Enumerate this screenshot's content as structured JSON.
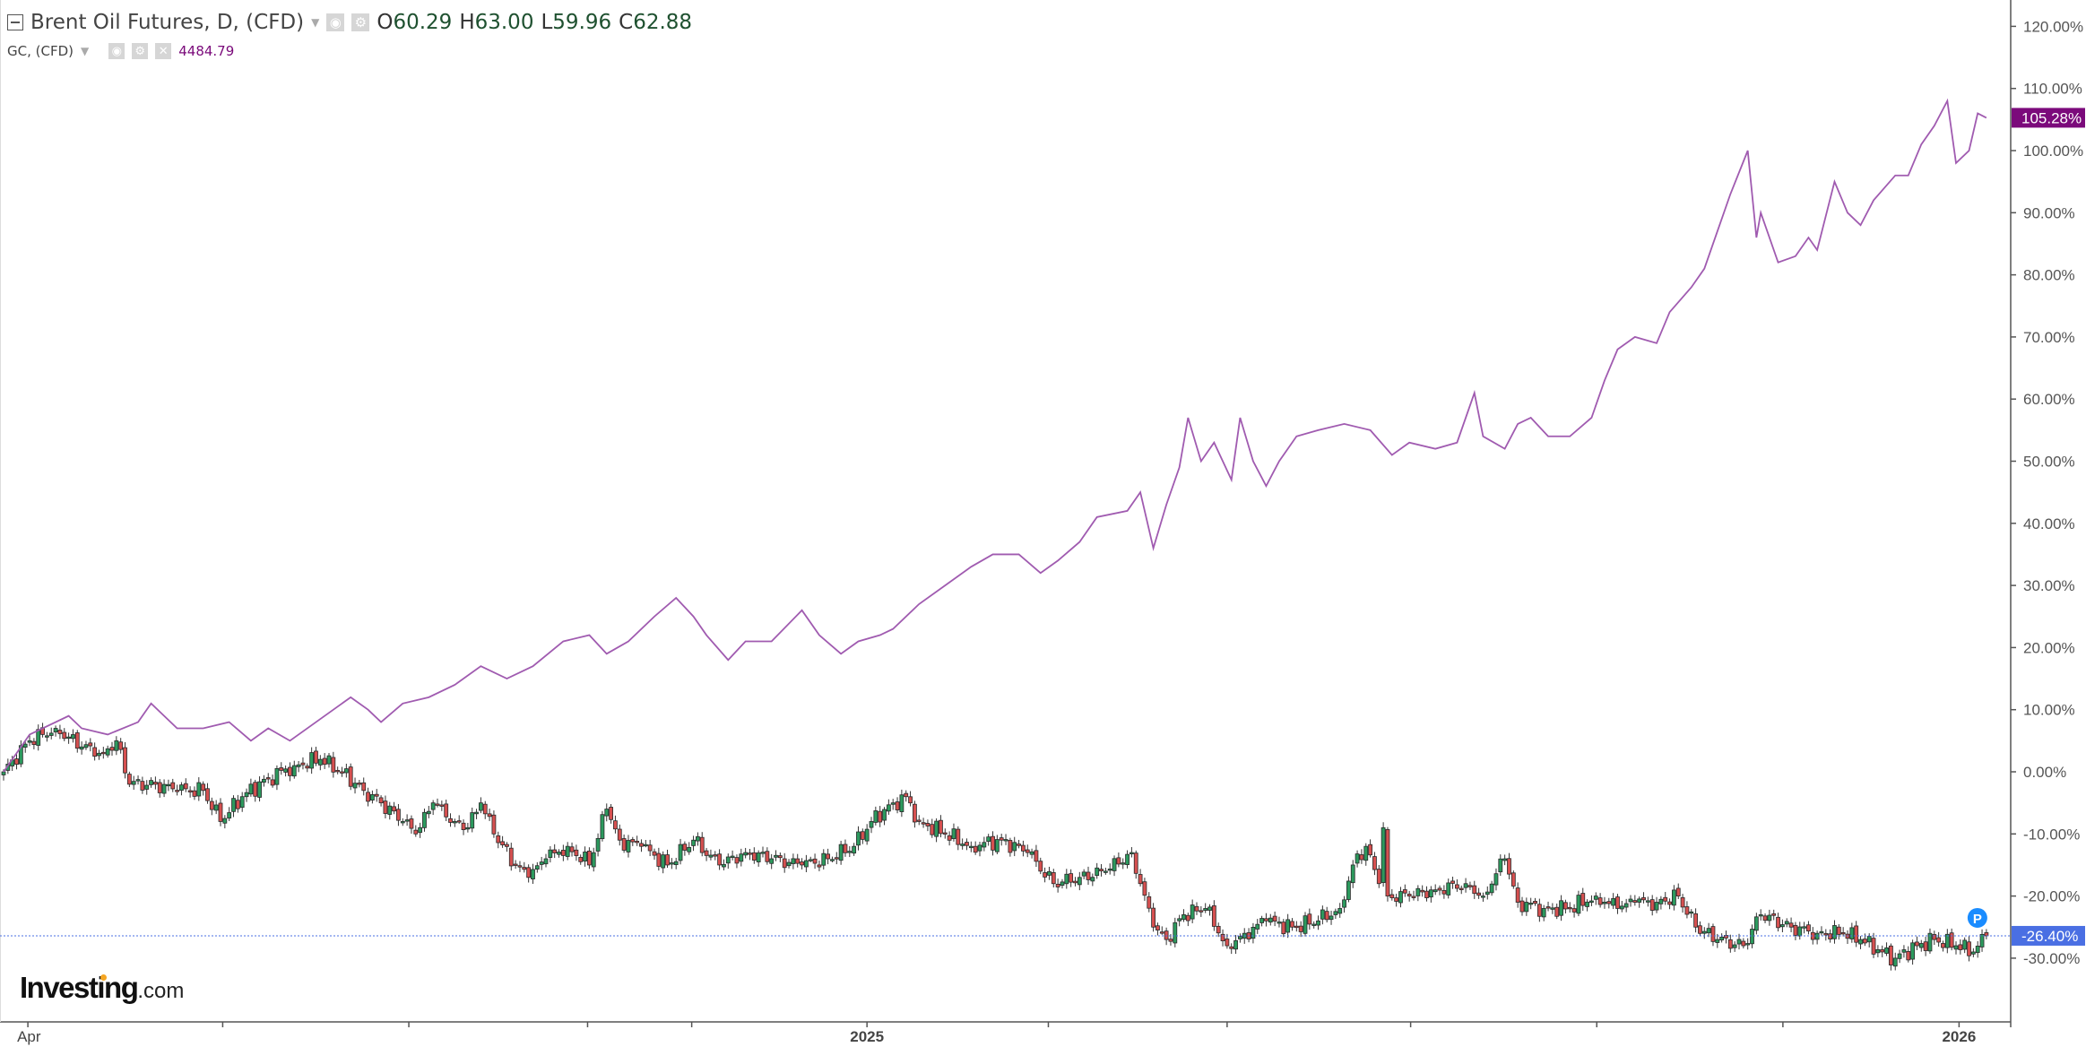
{
  "header": {
    "main_symbol": "Brent Oil Futures, D, (CFD)",
    "ohlc": {
      "o_label": "O",
      "o": "60.29",
      "h_label": "H",
      "h": "63.00",
      "l_label": "L",
      "l": "59.96",
      "c_label": "C",
      "c": "62.88"
    },
    "compare_symbol": "GC, (CFD)",
    "compare_value": "4484.79"
  },
  "logo": {
    "brand": "Investing",
    "suffix": ".com"
  },
  "colors": {
    "gold_line": "#a05bb0",
    "gold_label_bg": "#7b0a7b",
    "up": "#2c9a5e",
    "down": "#d65050",
    "price_line": "#4a6fe3",
    "badge": "#1a8cff"
  },
  "chart_data": {
    "type": "candlestick+line",
    "title": "Brent Oil Futures, D, (CFD) vs GC, (CFD)",
    "x_unit": "trading sessions from start",
    "x_range": [
      0,
      462
    ],
    "ylim": [
      -33,
      124
    ],
    "y_ticks": [
      "120.00%",
      "110.00%",
      "100.00%",
      "90.00%",
      "80.00%",
      "70.00%",
      "60.00%",
      "50.00%",
      "40.00%",
      "30.00%",
      "20.00%",
      "10.00%",
      "0.00%",
      "-10.00%",
      "-20.00%",
      "-30.00%"
    ],
    "y_tick_values": [
      120,
      110,
      100,
      90,
      80,
      70,
      60,
      50,
      40,
      30,
      20,
      10,
      0,
      -10,
      -20,
      -30
    ],
    "x_ticks": [
      {
        "s": 5.6,
        "label": "Apr"
      },
      {
        "s": 50.5,
        "label": ""
      },
      {
        "s": 93.4,
        "label": ""
      },
      {
        "s": 134.6,
        "label": ""
      },
      {
        "s": 158.6,
        "label": ""
      },
      {
        "s": 199,
        "label": "2025",
        "bold": true
      },
      {
        "s": 240.8,
        "label": ""
      },
      {
        "s": 282,
        "label": ""
      },
      {
        "s": 324.3,
        "label": ""
      },
      {
        "s": 367.2,
        "label": ""
      },
      {
        "s": 410.1,
        "label": ""
      },
      {
        "s": 450.7,
        "label": "2026",
        "bold": true
      }
    ],
    "series": [
      {
        "name": "GC, (CFD)",
        "type": "line",
        "last_label": "105.28%",
        "last_value": 105.28,
        "points": [
          [
            0,
            0
          ],
          [
            6,
            6
          ],
          [
            15,
            9
          ],
          [
            18,
            7
          ],
          [
            24,
            6
          ],
          [
            31,
            8
          ],
          [
            34,
            11
          ],
          [
            40,
            7
          ],
          [
            46,
            7
          ],
          [
            52,
            8
          ],
          [
            57,
            5
          ],
          [
            61,
            7
          ],
          [
            66,
            5
          ],
          [
            72,
            8
          ],
          [
            80,
            12
          ],
          [
            84,
            10
          ],
          [
            87,
            8
          ],
          [
            92,
            11
          ],
          [
            98,
            12
          ],
          [
            104,
            14
          ],
          [
            110,
            17
          ],
          [
            116,
            15
          ],
          [
            122,
            17
          ],
          [
            129,
            21
          ],
          [
            135,
            22
          ],
          [
            139,
            19
          ],
          [
            144,
            21
          ],
          [
            150,
            25
          ],
          [
            155,
            28
          ],
          [
            159,
            25
          ],
          [
            162,
            22
          ],
          [
            167,
            18
          ],
          [
            171,
            21
          ],
          [
            177,
            21
          ],
          [
            184,
            26
          ],
          [
            188,
            22
          ],
          [
            193,
            19
          ],
          [
            197,
            21
          ],
          [
            202,
            22
          ],
          [
            205,
            23
          ],
          [
            211,
            27
          ],
          [
            217,
            30
          ],
          [
            223,
            33
          ],
          [
            228,
            35
          ],
          [
            234,
            35
          ],
          [
            239,
            32
          ],
          [
            243,
            34
          ],
          [
            248,
            37
          ],
          [
            252,
            41
          ],
          [
            259,
            42
          ],
          [
            262,
            45
          ],
          [
            265,
            36
          ],
          [
            268,
            43
          ],
          [
            271,
            49
          ],
          [
            273,
            57
          ],
          [
            276,
            50
          ],
          [
            279,
            53
          ],
          [
            283,
            47
          ],
          [
            285,
            57
          ],
          [
            288,
            50
          ],
          [
            291,
            46
          ],
          [
            294,
            50
          ],
          [
            298,
            54
          ],
          [
            303,
            55
          ],
          [
            309,
            56
          ],
          [
            315,
            55
          ],
          [
            320,
            51
          ],
          [
            324,
            53
          ],
          [
            330,
            52
          ],
          [
            335,
            53
          ],
          [
            339,
            61
          ],
          [
            341,
            54
          ],
          [
            346,
            52
          ],
          [
            349,
            56
          ],
          [
            352,
            57
          ],
          [
            356,
            54
          ],
          [
            361,
            54
          ],
          [
            366,
            57
          ],
          [
            369,
            63
          ],
          [
            372,
            68
          ],
          [
            376,
            70
          ],
          [
            381,
            69
          ],
          [
            384,
            74
          ],
          [
            389,
            78
          ],
          [
            392,
            81
          ],
          [
            395,
            87
          ],
          [
            398,
            93
          ],
          [
            402,
            100
          ],
          [
            404,
            86
          ],
          [
            405,
            90
          ],
          [
            409,
            82
          ],
          [
            413,
            83
          ],
          [
            416,
            86
          ],
          [
            418,
            84
          ],
          [
            422,
            95
          ],
          [
            425,
            90
          ],
          [
            428,
            88
          ],
          [
            431,
            92
          ],
          [
            436,
            96
          ],
          [
            439,
            96
          ],
          [
            442,
            101
          ],
          [
            445,
            104
          ],
          [
            448,
            108
          ],
          [
            450,
            98
          ],
          [
            453,
            100
          ],
          [
            455,
            106
          ],
          [
            457,
            105.28
          ]
        ]
      },
      {
        "name": "Brent Oil Futures",
        "type": "candlestick",
        "last_label": "-26.40%",
        "last_value": -26.4,
        "closes": [
          [
            0,
            0
          ],
          [
            6,
            5
          ],
          [
            12,
            7
          ],
          [
            18,
            4
          ],
          [
            23,
            3
          ],
          [
            26,
            5
          ],
          [
            29,
            -2
          ],
          [
            35,
            -2
          ],
          [
            40,
            -3
          ],
          [
            46,
            -3
          ],
          [
            50,
            -8
          ],
          [
            55,
            -4
          ],
          [
            61,
            -1
          ],
          [
            67,
            1
          ],
          [
            73,
            2
          ],
          [
            78,
            0
          ],
          [
            83,
            -3
          ],
          [
            87,
            -5
          ],
          [
            92,
            -8
          ],
          [
            95,
            -10
          ],
          [
            99,
            -5
          ],
          [
            104,
            -8
          ],
          [
            107,
            -9
          ],
          [
            110,
            -5
          ],
          [
            113,
            -10
          ],
          [
            118,
            -15
          ],
          [
            121,
            -17
          ],
          [
            125,
            -14
          ],
          [
            130,
            -12
          ],
          [
            135,
            -15
          ],
          [
            139,
            -6
          ],
          [
            142,
            -11
          ],
          [
            147,
            -12
          ],
          [
            153,
            -15
          ],
          [
            159,
            -11
          ],
          [
            165,
            -15
          ],
          [
            171,
            -13
          ],
          [
            177,
            -14
          ],
          [
            184,
            -15
          ],
          [
            190,
            -14
          ],
          [
            196,
            -12
          ],
          [
            200,
            -8
          ],
          [
            205,
            -5
          ],
          [
            208,
            -4
          ],
          [
            211,
            -8
          ],
          [
            217,
            -10
          ],
          [
            223,
            -12
          ],
          [
            230,
            -11
          ],
          [
            236,
            -13
          ],
          [
            242,
            -18
          ],
          [
            248,
            -17
          ],
          [
            254,
            -16
          ],
          [
            260,
            -13
          ],
          [
            262,
            -18
          ],
          [
            265,
            -25
          ],
          [
            268,
            -27
          ],
          [
            272,
            -23
          ],
          [
            277,
            -22
          ],
          [
            282,
            -28
          ],
          [
            286,
            -26
          ],
          [
            291,
            -24
          ],
          [
            297,
            -25
          ],
          [
            303,
            -24
          ],
          [
            308,
            -22
          ],
          [
            311,
            -15
          ],
          [
            314,
            -12
          ],
          [
            317,
            -18
          ],
          [
            318,
            -9
          ],
          [
            319,
            -20
          ],
          [
            324,
            -20
          ],
          [
            330,
            -19
          ],
          [
            337,
            -18
          ],
          [
            341,
            -20
          ],
          [
            346,
            -14
          ],
          [
            349,
            -21
          ],
          [
            355,
            -22
          ],
          [
            361,
            -22
          ],
          [
            367,
            -20
          ],
          [
            372,
            -22
          ],
          [
            376,
            -21
          ],
          [
            381,
            -21
          ],
          [
            386,
            -20
          ],
          [
            390,
            -25
          ],
          [
            395,
            -27
          ],
          [
            401,
            -28
          ],
          [
            405,
            -23
          ],
          [
            412,
            -25
          ],
          [
            418,
            -26
          ],
          [
            424,
            -26
          ],
          [
            428,
            -27
          ],
          [
            433,
            -29
          ],
          [
            436,
            -30
          ],
          [
            441,
            -28
          ],
          [
            445,
            -27
          ],
          [
            450,
            -28
          ],
          [
            454,
            -29
          ],
          [
            457,
            -26.4
          ]
        ]
      }
    ]
  }
}
